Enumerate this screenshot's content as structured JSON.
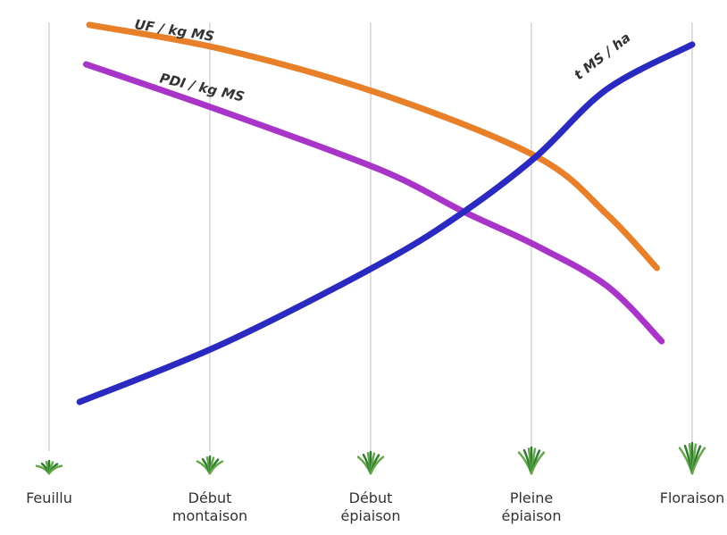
{
  "chart_data": {
    "type": "line",
    "categories": [
      "Feuillu",
      "Début montaison",
      "Début épiaison",
      "Pleine épiaison",
      "Floraison"
    ],
    "xlim": [
      0,
      4
    ],
    "ylim": [
      0,
      100
    ],
    "series": [
      {
        "name": "UF / kg MS",
        "color": "#e8802a",
        "x": [
          0.25,
          1.08,
          2.06,
          3.03,
          3.47,
          3.78
        ],
        "values": [
          94.2,
          88.5,
          78.1,
          63.5,
          50,
          37.5
        ]
      },
      {
        "name": "PDI / kg MS",
        "color": "#a835c8",
        "x": [
          0.23,
          1.08,
          2.06,
          2.58,
          3.03,
          3.47,
          3.81
        ],
        "values": [
          85,
          74,
          60.4,
          50.6,
          42.7,
          33.3,
          20.4
        ]
      },
      {
        "name": "t MS / ha",
        "color": "#2a2ac0",
        "x": [
          0.19,
          1.08,
          2.06,
          2.58,
          3.03,
          3.47,
          4
        ],
        "values": [
          6.25,
          19.8,
          38.5,
          50.6,
          63.5,
          79.2,
          89.6
        ]
      }
    ]
  }
}
